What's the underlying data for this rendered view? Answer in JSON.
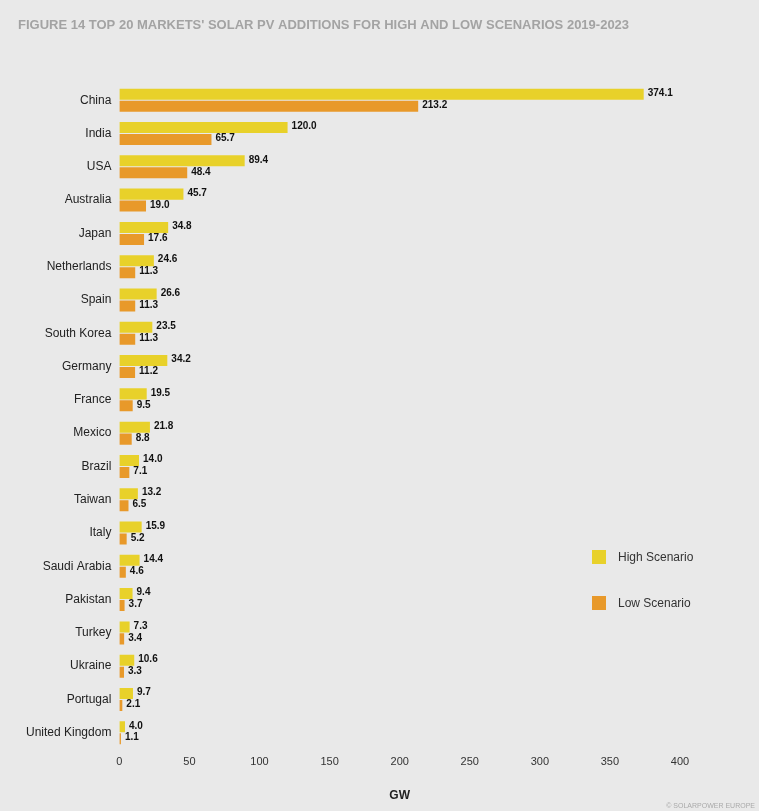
{
  "chart_data": {
    "type": "bar",
    "orientation": "horizontal",
    "title": "FIGURE 14 TOP 20 MARKETS' SOLAR PV ADDITIONS FOR HIGH AND LOW SCENARIOS 2019-2023",
    "xlabel": "GW",
    "categories": [
      "China",
      "India",
      "USA",
      "Australia",
      "Japan",
      "Netherlands",
      "Spain",
      "South Korea",
      "Germany",
      "France",
      "Mexico",
      "Brazil",
      "Taiwan",
      "Italy",
      "Saudi Arabia",
      "Pakistan",
      "Turkey",
      "Ukraine",
      "Portugal",
      "United Kingdom"
    ],
    "series": [
      {
        "name": "High Scenario",
        "color": "#e8d12a",
        "values": [
          374.1,
          120.0,
          89.4,
          45.7,
          34.8,
          24.6,
          26.6,
          23.5,
          34.2,
          19.5,
          21.8,
          14.0,
          13.2,
          15.9,
          14.4,
          9.4,
          7.3,
          10.6,
          9.7,
          4.0
        ],
        "value_labels": [
          "374.1",
          "120.0",
          "89.4",
          "45.7",
          "34.8",
          "24.6",
          "26.6",
          "23.5",
          "34.2",
          "19.5",
          "21.8",
          "14.0",
          "13.2",
          "15.9",
          "14.4",
          "9.4",
          "7.3",
          "10.6",
          "9.7",
          "4.0"
        ]
      },
      {
        "name": "Low Scenario",
        "color": "#e8992a",
        "values": [
          213.2,
          65.7,
          48.4,
          19.0,
          17.6,
          11.3,
          11.3,
          11.3,
          11.2,
          9.5,
          8.8,
          7.1,
          6.5,
          5.2,
          4.6,
          3.7,
          3.4,
          3.3,
          2.1,
          1.1
        ],
        "value_labels": [
          "213.2",
          "65.7",
          "48.4",
          "19.0",
          "17.6",
          "11.3",
          "11.3",
          "11.3",
          "11.2",
          "9.5",
          "8.8",
          "7.1",
          "6.5",
          "5.2",
          "4.6",
          "3.7",
          "3.4",
          "3.3",
          "2.1",
          "1.1"
        ]
      }
    ],
    "xlim": [
      0,
      400
    ],
    "xticks": [
      0,
      50,
      100,
      150,
      200,
      250,
      300,
      350,
      400
    ],
    "grid": false,
    "stacked": false,
    "data_labels": true,
    "legend": "right",
    "annotations": [
      "© SOLARPOWER EUROPE"
    ]
  }
}
